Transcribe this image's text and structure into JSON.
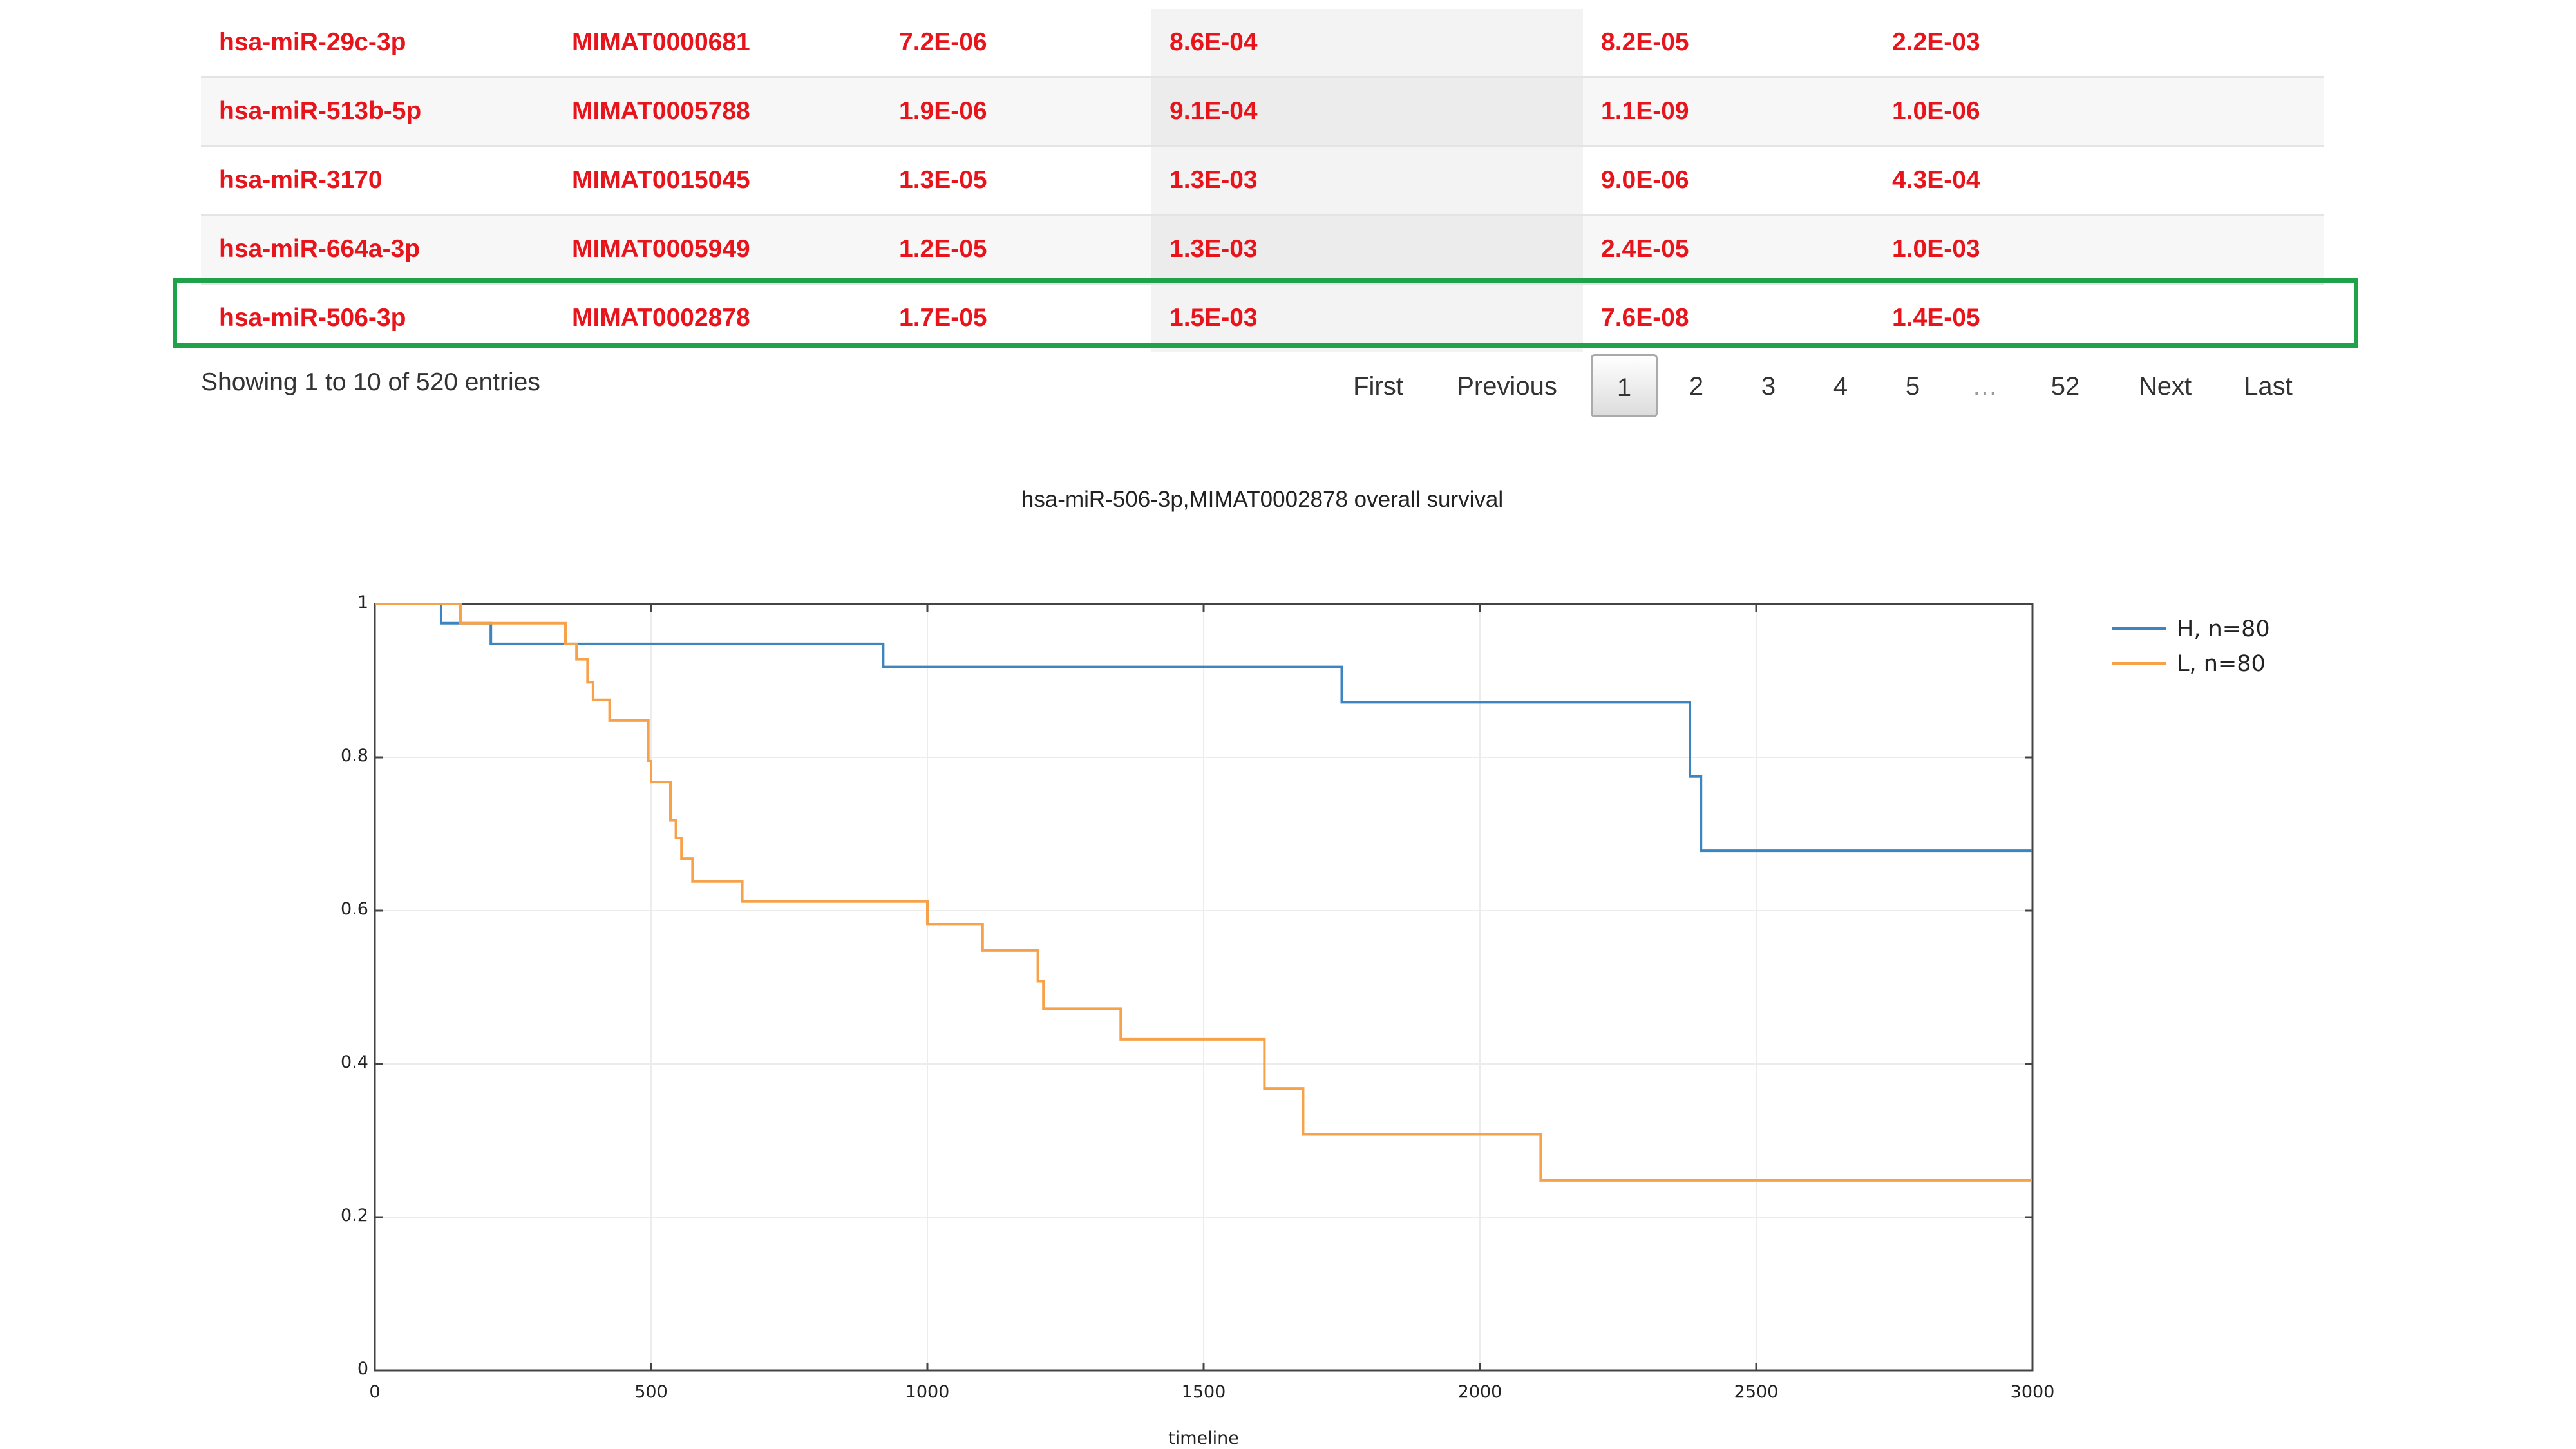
{
  "table": {
    "rows": [
      {
        "name": "hsa-miR-29c-3p",
        "accession": "MIMAT0000681",
        "v1": "7.2E-06",
        "v2": "8.6E-04",
        "v3": "8.2E-05",
        "v4": "2.2E-03"
      },
      {
        "name": "hsa-miR-513b-5p",
        "accession": "MIMAT0005788",
        "v1": "1.9E-06",
        "v2": "9.1E-04",
        "v3": "1.1E-09",
        "v4": "1.0E-06"
      },
      {
        "name": "hsa-miR-3170",
        "accession": "MIMAT0015045",
        "v1": "1.3E-05",
        "v2": "1.3E-03",
        "v3": "9.0E-06",
        "v4": "4.3E-04"
      },
      {
        "name": "hsa-miR-664a-3p",
        "accession": "MIMAT0005949",
        "v1": "1.2E-05",
        "v2": "1.3E-03",
        "v3": "2.4E-05",
        "v4": "1.0E-03"
      },
      {
        "name": "hsa-miR-506-3p",
        "accession": "MIMAT0002878",
        "v1": "1.7E-05",
        "v2": "1.5E-03",
        "v3": "7.6E-08",
        "v4": "1.4E-05"
      }
    ],
    "highlighted_row": 4,
    "highlight_color": "#1fa24a",
    "text_color": "#e8141b"
  },
  "info": "Showing 1 to 10 of 520 entries",
  "pagination": {
    "first": "First",
    "previous": "Previous",
    "pages": [
      "1",
      "2",
      "3",
      "4",
      "5"
    ],
    "ellipsis": "…",
    "last_page": "52",
    "next": "Next",
    "last": "Last",
    "current": "1"
  },
  "chart_data": {
    "type": "line",
    "step": true,
    "title": "hsa-miR-506-3p,MIMAT0002878 overall survival",
    "xlabel": "timeline",
    "ylabel": "",
    "xlim": [
      0,
      3000
    ],
    "ylim": [
      0,
      1
    ],
    "x_ticks": [
      "0",
      "500",
      "1000",
      "1500",
      "2000",
      "2500",
      "3000"
    ],
    "y_ticks": [
      "0",
      "0.2",
      "0.4",
      "0.6",
      "0.8",
      "1"
    ],
    "grid": true,
    "legend_position": "top-right",
    "series": [
      {
        "name": "H, n=80",
        "color": "#3d85c0",
        "x": [
          0,
          120,
          210,
          920,
          1750,
          2380,
          2400,
          3000
        ],
        "y": [
          1.0,
          0.975,
          0.948,
          0.918,
          0.872,
          0.775,
          0.678,
          0.678
        ]
      },
      {
        "name": "L, n=80",
        "color": "#f7a24a",
        "x": [
          0,
          155,
          345,
          365,
          385,
          395,
          425,
          495,
          500,
          535,
          545,
          555,
          575,
          665,
          1000,
          1100,
          1200,
          1210,
          1350,
          1610,
          1680,
          2110,
          3000
        ],
        "y": [
          1.0,
          0.975,
          0.948,
          0.928,
          0.898,
          0.875,
          0.848,
          0.795,
          0.768,
          0.718,
          0.695,
          0.668,
          0.638,
          0.612,
          0.582,
          0.548,
          0.508,
          0.472,
          0.432,
          0.368,
          0.308,
          0.248,
          0.248
        ]
      }
    ]
  }
}
